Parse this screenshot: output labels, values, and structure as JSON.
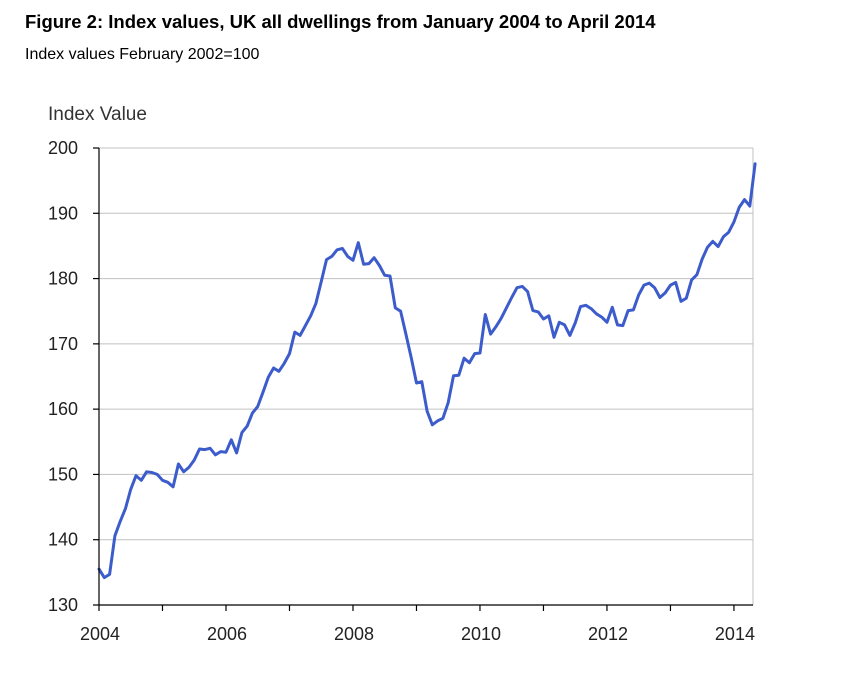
{
  "header": {
    "title": "Figure 2: Index values, UK all dwellings from January 2004 to April 2014",
    "subtitle": "Index values February 2002=100"
  },
  "chart_data": {
    "type": "line",
    "title": "Figure 2: Index values, UK all dwellings from January 2004 to April 2014",
    "subtitle": "Index values February 2002=100",
    "xlabel": "",
    "ylabel": "Index Value",
    "xlim": [
      2004,
      2014.3
    ],
    "ylim": [
      130,
      200
    ],
    "y_ticks": [
      130,
      140,
      150,
      160,
      170,
      180,
      190,
      200
    ],
    "x_ticks": [
      2004,
      2006,
      2008,
      2010,
      2012,
      2014
    ],
    "x_tick_labels": [
      "2004",
      "2006",
      "2008",
      "2010",
      "2012",
      "2014"
    ],
    "grid": "horizontal",
    "line_color": "#3d5ccc",
    "series": [
      {
        "start": "2004-01",
        "frequency": "monthly",
        "values": [
          135.5,
          134.2,
          134.7,
          140.6,
          142.8,
          144.8,
          147.7,
          149.8,
          149.1,
          150.4,
          150.3,
          150.0,
          149.1,
          148.8,
          148.1,
          151.6,
          150.4,
          151.1,
          152.2,
          153.9,
          153.8,
          154.0,
          153.0,
          153.5,
          153.4,
          155.3,
          153.3,
          156.4,
          157.4,
          159.4,
          160.4,
          162.6,
          164.9,
          166.3,
          165.8,
          167.0,
          168.5,
          171.8,
          171.3,
          172.8,
          174.3,
          176.2,
          179.5,
          182.9,
          183.4,
          184.4,
          184.6,
          183.4,
          182.8,
          185.5,
          182.2,
          182.3,
          183.2,
          182.0,
          180.5,
          180.4,
          175.5,
          175.0,
          171.5,
          167.9,
          164.0,
          164.2,
          159.7,
          157.6,
          158.2,
          158.6,
          161.0,
          165.1,
          165.2,
          167.8,
          167.1,
          168.5,
          168.6,
          174.5,
          171.5,
          172.6,
          173.9,
          175.5,
          177.1,
          178.6,
          178.8,
          178.0,
          175.1,
          174.9,
          173.8,
          174.3,
          171.0,
          173.3,
          172.9,
          171.3,
          173.2,
          175.7,
          175.9,
          175.4,
          174.6,
          174.1,
          173.3,
          175.6,
          172.9,
          172.8,
          175.1,
          175.2,
          177.5,
          179.0,
          179.3,
          178.6,
          177.1,
          177.8,
          179.0,
          179.4,
          176.5,
          177.0,
          179.8,
          180.6,
          183.0,
          184.8,
          185.7,
          184.9,
          186.4,
          187.1,
          188.7,
          190.9,
          192.1,
          191.1,
          197.6
        ]
      }
    ]
  }
}
